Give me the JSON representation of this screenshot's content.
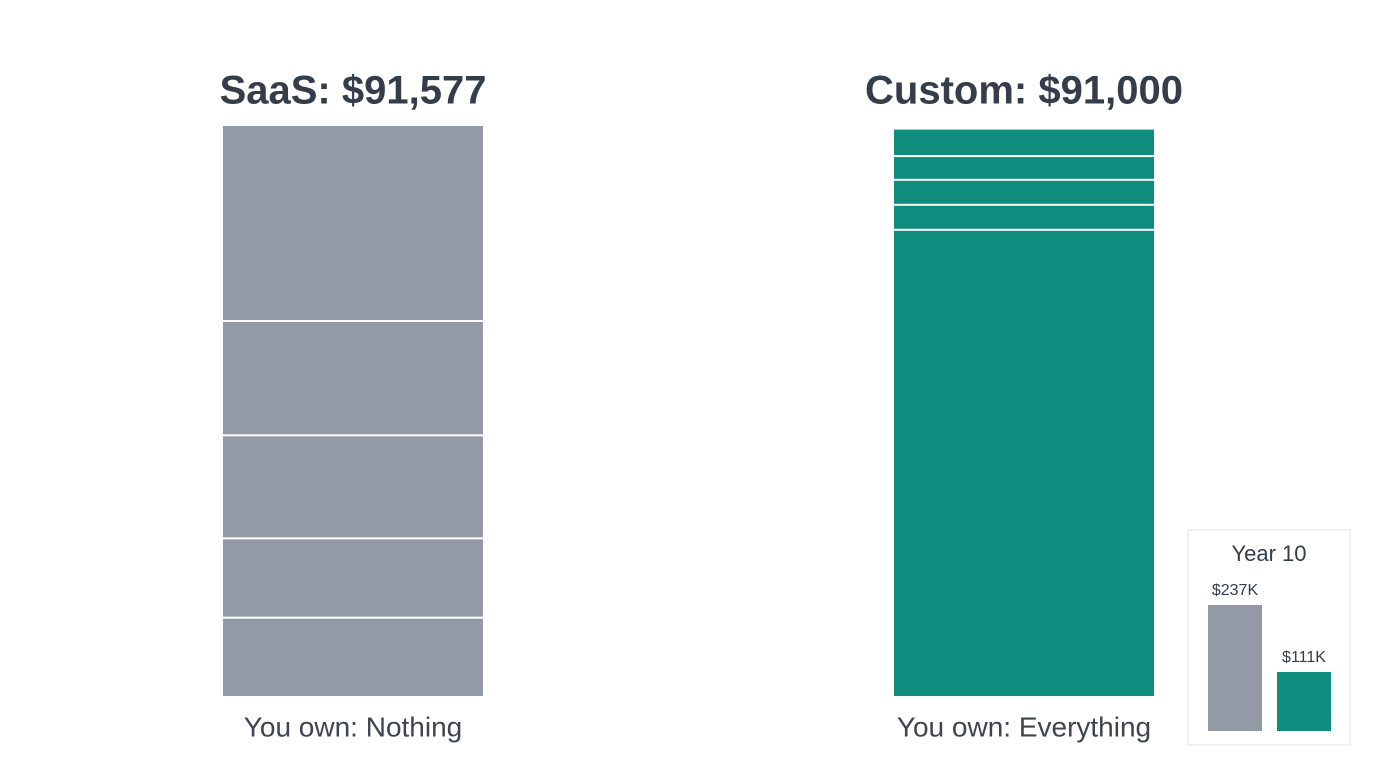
{
  "chart_data": [
    {
      "type": "stacked-bar",
      "stacks": [
        {
          "label": "SaaS: $91,577",
          "caption": "You own: Nothing",
          "color": "#939aa6",
          "segments": [
            12700,
            12700,
            16500,
            18300,
            31377
          ]
        },
        {
          "label": "Custom: $91,000",
          "caption": "You own: Everything",
          "color": "#0e8c7e",
          "segments": [
            74800,
            4000,
            4000,
            3800,
            4400
          ]
        }
      ]
    },
    {
      "type": "bar",
      "title": "Year 10",
      "values": [
        237,
        111
      ],
      "value_labels": [
        "$237K",
        "$111K"
      ],
      "colors": [
        "#939aa6",
        "#0e8c7e"
      ]
    }
  ]
}
